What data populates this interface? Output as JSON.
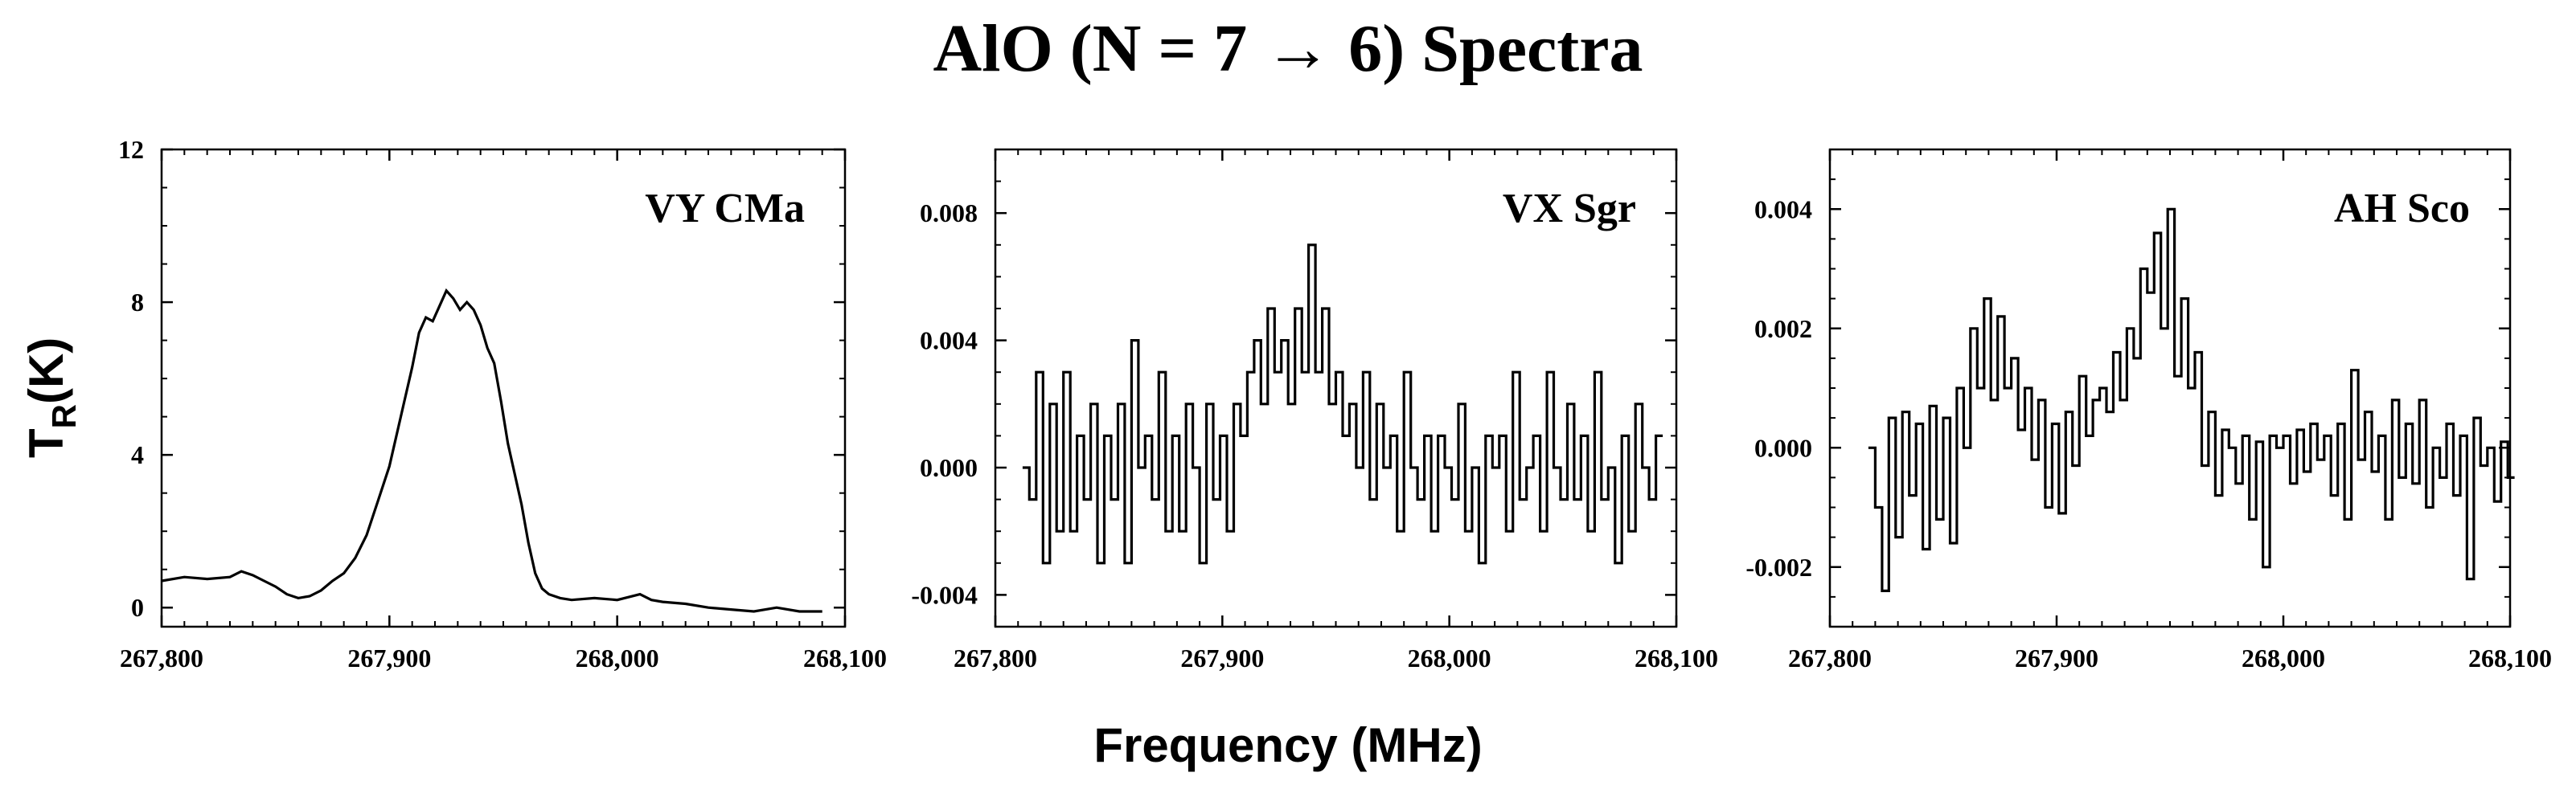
{
  "title": "AlO (N = 7 → 6) Spectra",
  "xlabel": "Frequency (MHz)",
  "ylabel": {
    "main": "T",
    "sub": "R",
    "rest": "(K)"
  },
  "colors": {
    "line": "#000000",
    "axis": "#000000",
    "background": "#ffffff"
  },
  "chart_data": [
    {
      "type": "line",
      "panel": "VY CMa",
      "step": false,
      "xlim": [
        267800,
        268100
      ],
      "ylim": [
        -0.5,
        12
      ],
      "xticks": [
        267800,
        267900,
        268000,
        268100
      ],
      "xtick_labels": [
        "267,800",
        "267,900",
        "268,000",
        "268,100"
      ],
      "yticks": [
        0,
        4,
        8,
        12
      ],
      "ytick_labels": [
        "0",
        "4",
        "8",
        "12"
      ],
      "series": [
        {
          "name": "VY CMa",
          "points": [
            [
              267800,
              0.7
            ],
            [
              267810,
              0.8
            ],
            [
              267820,
              0.75
            ],
            [
              267830,
              0.8
            ],
            [
              267835,
              0.95
            ],
            [
              267840,
              0.85
            ],
            [
              267845,
              0.7
            ],
            [
              267850,
              0.55
            ],
            [
              267855,
              0.35
            ],
            [
              267860,
              0.25
            ],
            [
              267865,
              0.3
            ],
            [
              267870,
              0.45
            ],
            [
              267875,
              0.7
            ],
            [
              267880,
              0.9
            ],
            [
              267885,
              1.3
            ],
            [
              267890,
              1.9
            ],
            [
              267895,
              2.8
            ],
            [
              267900,
              3.7
            ],
            [
              267905,
              5.0
            ],
            [
              267910,
              6.3
            ],
            [
              267913,
              7.2
            ],
            [
              267916,
              7.6
            ],
            [
              267919,
              7.5
            ],
            [
              267922,
              7.9
            ],
            [
              267925,
              8.3
            ],
            [
              267928,
              8.1
            ],
            [
              267931,
              7.8
            ],
            [
              267934,
              8.0
            ],
            [
              267937,
              7.8
            ],
            [
              267940,
              7.4
            ],
            [
              267943,
              6.8
            ],
            [
              267946,
              6.4
            ],
            [
              267949,
              5.4
            ],
            [
              267952,
              4.3
            ],
            [
              267955,
              3.5
            ],
            [
              267958,
              2.7
            ],
            [
              267961,
              1.7
            ],
            [
              267964,
              0.9
            ],
            [
              267967,
              0.5
            ],
            [
              267970,
              0.35
            ],
            [
              267975,
              0.25
            ],
            [
              267980,
              0.2
            ],
            [
              267990,
              0.25
            ],
            [
              268000,
              0.2
            ],
            [
              268010,
              0.35
            ],
            [
              268015,
              0.2
            ],
            [
              268020,
              0.15
            ],
            [
              268030,
              0.1
            ],
            [
              268040,
              0.0
            ],
            [
              268050,
              -0.05
            ],
            [
              268060,
              -0.1
            ],
            [
              268070,
              0.0
            ],
            [
              268080,
              -0.1
            ],
            [
              268090,
              -0.1
            ]
          ]
        }
      ]
    },
    {
      "type": "line",
      "panel": "VX Sgr",
      "step": true,
      "xlim": [
        267800,
        268100
      ],
      "ylim": [
        -0.005,
        0.01
      ],
      "xticks": [
        267800,
        267900,
        268000,
        268100
      ],
      "xtick_labels": [
        "267,800",
        "267,900",
        "268,000",
        "268,100"
      ],
      "yticks": [
        -0.004,
        0.0,
        0.004,
        0.008
      ],
      "ytick_labels": [
        "-0.004",
        "0.000",
        "0.004",
        "0.008"
      ],
      "series": [
        {
          "name": "VX Sgr",
          "points": [
            [
              267812,
              0.0
            ],
            [
              267815,
              -0.001
            ],
            [
              267818,
              0.003
            ],
            [
              267821,
              -0.003
            ],
            [
              267824,
              0.002
            ],
            [
              267827,
              -0.002
            ],
            [
              267830,
              0.003
            ],
            [
              267833,
              -0.002
            ],
            [
              267836,
              0.001
            ],
            [
              267839,
              -0.001
            ],
            [
              267842,
              0.002
            ],
            [
              267845,
              -0.003
            ],
            [
              267848,
              0.001
            ],
            [
              267851,
              -0.001
            ],
            [
              267854,
              0.002
            ],
            [
              267857,
              -0.003
            ],
            [
              267860,
              0.004
            ],
            [
              267863,
              0.0
            ],
            [
              267866,
              0.001
            ],
            [
              267869,
              -0.001
            ],
            [
              267872,
              0.003
            ],
            [
              267875,
              -0.002
            ],
            [
              267878,
              0.001
            ],
            [
              267881,
              -0.002
            ],
            [
              267884,
              0.002
            ],
            [
              267887,
              0.0
            ],
            [
              267890,
              -0.003
            ],
            [
              267893,
              0.002
            ],
            [
              267896,
              -0.001
            ],
            [
              267899,
              0.001
            ],
            [
              267902,
              -0.002
            ],
            [
              267905,
              0.002
            ],
            [
              267908,
              0.001
            ],
            [
              267911,
              0.003
            ],
            [
              267914,
              0.004
            ],
            [
              267917,
              0.002
            ],
            [
              267920,
              0.005
            ],
            [
              267923,
              0.003
            ],
            [
              267926,
              0.004
            ],
            [
              267929,
              0.002
            ],
            [
              267932,
              0.005
            ],
            [
              267935,
              0.003
            ],
            [
              267938,
              0.007
            ],
            [
              267941,
              0.003
            ],
            [
              267944,
              0.005
            ],
            [
              267947,
              0.002
            ],
            [
              267950,
              0.003
            ],
            [
              267953,
              0.001
            ],
            [
              267956,
              0.002
            ],
            [
              267959,
              0.0
            ],
            [
              267962,
              0.003
            ],
            [
              267965,
              -0.001
            ],
            [
              267968,
              0.002
            ],
            [
              267971,
              0.0
            ],
            [
              267974,
              0.001
            ],
            [
              267977,
              -0.002
            ],
            [
              267980,
              0.003
            ],
            [
              267983,
              0.0
            ],
            [
              267986,
              -0.001
            ],
            [
              267989,
              0.001
            ],
            [
              267992,
              -0.002
            ],
            [
              267995,
              0.001
            ],
            [
              267998,
              0.0
            ],
            [
              268001,
              -0.001
            ],
            [
              268004,
              0.002
            ],
            [
              268007,
              -0.002
            ],
            [
              268010,
              0.0
            ],
            [
              268013,
              -0.003
            ],
            [
              268016,
              0.001
            ],
            [
              268019,
              0.0
            ],
            [
              268022,
              0.001
            ],
            [
              268025,
              -0.002
            ],
            [
              268028,
              0.003
            ],
            [
              268031,
              -0.001
            ],
            [
              268034,
              0.0
            ],
            [
              268037,
              0.001
            ],
            [
              268040,
              -0.002
            ],
            [
              268043,
              0.003
            ],
            [
              268046,
              0.0
            ],
            [
              268049,
              -0.001
            ],
            [
              268052,
              0.002
            ],
            [
              268055,
              -0.001
            ],
            [
              268058,
              0.001
            ],
            [
              268061,
              -0.002
            ],
            [
              268064,
              0.003
            ],
            [
              268067,
              -0.001
            ],
            [
              268070,
              0.0
            ],
            [
              268073,
              -0.003
            ],
            [
              268076,
              0.001
            ],
            [
              268079,
              -0.002
            ],
            [
              268082,
              0.002
            ],
            [
              268085,
              0.0
            ],
            [
              268088,
              -0.001
            ],
            [
              268091,
              0.001
            ]
          ]
        }
      ]
    },
    {
      "type": "line",
      "panel": "AH Sco",
      "step": true,
      "xlim": [
        267800,
        268100
      ],
      "ylim": [
        -0.003,
        0.005
      ],
      "xticks": [
        267800,
        267900,
        268000,
        268100
      ],
      "xtick_labels": [
        "267,800",
        "267,900",
        "268,000",
        "268,100"
      ],
      "yticks": [
        -0.002,
        0.0,
        0.002,
        0.004
      ],
      "ytick_labels": [
        "-0.002",
        "0.000",
        "0.002",
        "0.004"
      ],
      "series": [
        {
          "name": "AH Sco",
          "points": [
            [
              267817,
              0.0
            ],
            [
              267820,
              -0.001
            ],
            [
              267823,
              -0.0024
            ],
            [
              267826,
              0.0005
            ],
            [
              267829,
              -0.0015
            ],
            [
              267832,
              0.0006
            ],
            [
              267835,
              -0.0008
            ],
            [
              267838,
              0.0004
            ],
            [
              267841,
              -0.0017
            ],
            [
              267844,
              0.0007
            ],
            [
              267847,
              -0.0012
            ],
            [
              267850,
              0.0005
            ],
            [
              267853,
              -0.0016
            ],
            [
              267856,
              0.001
            ],
            [
              267859,
              0.0
            ],
            [
              267862,
              0.002
            ],
            [
              267865,
              0.001
            ],
            [
              267868,
              0.0025
            ],
            [
              267871,
              0.0008
            ],
            [
              267874,
              0.0022
            ],
            [
              267877,
              0.001
            ],
            [
              267880,
              0.0015
            ],
            [
              267883,
              0.0003
            ],
            [
              267886,
              0.001
            ],
            [
              267889,
              -0.0002
            ],
            [
              267892,
              0.0008
            ],
            [
              267895,
              -0.001
            ],
            [
              267898,
              0.0004
            ],
            [
              267901,
              -0.0011
            ],
            [
              267904,
              0.0006
            ],
            [
              267907,
              -0.0003
            ],
            [
              267910,
              0.0012
            ],
            [
              267913,
              0.0002
            ],
            [
              267916,
              0.0008
            ],
            [
              267919,
              0.001
            ],
            [
              267922,
              0.0006
            ],
            [
              267925,
              0.0016
            ],
            [
              267928,
              0.0008
            ],
            [
              267931,
              0.002
            ],
            [
              267934,
              0.0015
            ],
            [
              267937,
              0.003
            ],
            [
              267940,
              0.0026
            ],
            [
              267943,
              0.0036
            ],
            [
              267946,
              0.002
            ],
            [
              267949,
              0.004
            ],
            [
              267952,
              0.0012
            ],
            [
              267955,
              0.0025
            ],
            [
              267958,
              0.001
            ],
            [
              267961,
              0.0016
            ],
            [
              267964,
              -0.0003
            ],
            [
              267967,
              0.0006
            ],
            [
              267970,
              -0.0008
            ],
            [
              267973,
              0.0003
            ],
            [
              267976,
              0.0
            ],
            [
              267979,
              -0.0006
            ],
            [
              267982,
              0.0002
            ],
            [
              267985,
              -0.0012
            ],
            [
              267988,
              0.0001
            ],
            [
              267991,
              -0.002
            ],
            [
              267994,
              0.0002
            ],
            [
              267997,
              0.0
            ],
            [
              268000,
              0.0002
            ],
            [
              268003,
              -0.0006
            ],
            [
              268006,
              0.0003
            ],
            [
              268009,
              -0.0004
            ],
            [
              268012,
              0.0004
            ],
            [
              268015,
              -0.0002
            ],
            [
              268018,
              0.0002
            ],
            [
              268021,
              -0.0008
            ],
            [
              268024,
              0.0004
            ],
            [
              268027,
              -0.0012
            ],
            [
              268030,
              0.0013
            ],
            [
              268033,
              -0.0002
            ],
            [
              268036,
              0.0006
            ],
            [
              268039,
              -0.0004
            ],
            [
              268042,
              0.0002
            ],
            [
              268045,
              -0.0012
            ],
            [
              268048,
              0.0008
            ],
            [
              268051,
              -0.0005
            ],
            [
              268054,
              0.0004
            ],
            [
              268057,
              -0.0006
            ],
            [
              268060,
              0.0008
            ],
            [
              268063,
              -0.001
            ],
            [
              268066,
              0.0
            ],
            [
              268069,
              -0.0005
            ],
            [
              268072,
              0.0004
            ],
            [
              268075,
              -0.0008
            ],
            [
              268078,
              0.0002
            ],
            [
              268081,
              -0.0022
            ],
            [
              268084,
              0.0005
            ],
            [
              268087,
              -0.0003
            ],
            [
              268090,
              0.0
            ],
            [
              268093,
              -0.0009
            ],
            [
              268096,
              0.0001
            ],
            [
              268099,
              -0.0005
            ]
          ]
        }
      ]
    }
  ]
}
